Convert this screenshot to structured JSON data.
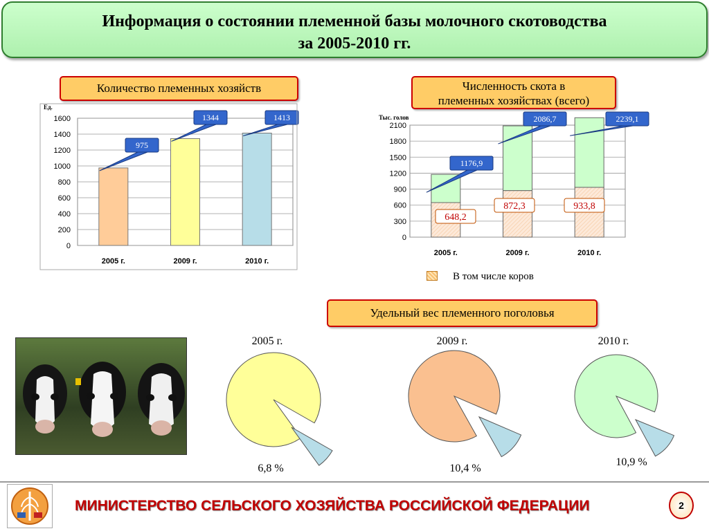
{
  "title": {
    "line1": "Информация о состоянии племенной базы молочного скотоводства",
    "line2": "за 2005-2010 гг."
  },
  "chart1_header": "Количество племенных хозяйств",
  "chart2_header_line1": "Численность скота в",
  "chart2_header_line2": "племенных хозяйствах (всего)",
  "pies_header": "Удельный вес племенного поголовья",
  "legend_label": "В том числе коров",
  "photo_alt": "cows",
  "footer": {
    "ministry": "МИНИСТЕРСТВО СЕЛЬСКОГО ХОЗЯЙСТВА РОССИЙСКОЙ ФЕДЕРАЦИИ",
    "page_number": "2"
  },
  "colors": {
    "title_bg": "#ccffcc",
    "box_fill": "#ffcc66",
    "box_border": "#cc0000",
    "callout_fill": "#3366cc",
    "bar_2005": "#ffcc99",
    "bar_2009": "#ffff99",
    "bar_2010": "#b7dde8",
    "green_fill": "#ccffcc",
    "cows_fill": "#fde9d9",
    "pie_2005": "#ffff99",
    "pie_2009": "#fac090",
    "pie_2010": "#ccffcc",
    "slice": "#b7dde8",
    "ministry_text": "#c00000"
  },
  "chart_data": [
    {
      "type": "bar",
      "title": "Количество племенных хозяйств",
      "ylabel": "Ед.",
      "categories": [
        "2005 г.",
        "2009 г.",
        "2010 г."
      ],
      "values": [
        975,
        1344,
        1413
      ],
      "value_labels": [
        "975",
        "1344",
        "1413"
      ],
      "ylim": [
        0,
        1600
      ],
      "yticks": [
        "0",
        "200",
        "400",
        "600",
        "800",
        "1000",
        "1200",
        "1400",
        "1600"
      ],
      "grid": true
    },
    {
      "type": "bar",
      "title": "Численность скота в племенных хозяйствах (всего)",
      "ylabel": "Тыс. голов",
      "categories": [
        "2005 г.",
        "2009 г.",
        "2010 г."
      ],
      "series": [
        {
          "name": "В том числе коров",
          "values": [
            648.2,
            872.3,
            933.8
          ],
          "labels": [
            "648,2",
            "872,3",
            "933,8"
          ]
        },
        {
          "values": [
            1176.9,
            2086.7,
            2239.1
          ],
          "labels": [
            "1176,9",
            "2086,7",
            "2239,1"
          ]
        }
      ],
      "ylim": [
        0,
        2100
      ],
      "yticks": [
        "0",
        "300",
        "600",
        "900",
        "1200",
        "1500",
        "1800",
        "2100"
      ],
      "grid": true
    },
    {
      "type": "pie",
      "title": "2005 г.",
      "values": [
        6.8,
        93.2
      ],
      "label": "6,8 %"
    },
    {
      "type": "pie",
      "title": "2009 г.",
      "values": [
        10.4,
        89.6
      ],
      "label": "10,4 %"
    },
    {
      "type": "pie",
      "title": "2010 г.",
      "values": [
        10.9,
        89.1
      ],
      "label": "10,9 %"
    }
  ]
}
